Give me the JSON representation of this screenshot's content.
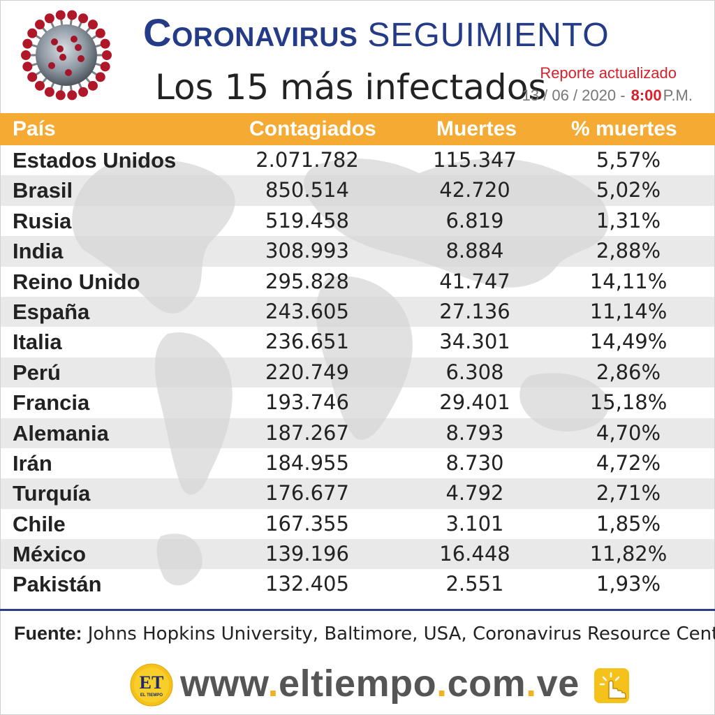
{
  "header": {
    "title_main": "Coronavirus",
    "title_sub": "SEGUIMIENTO",
    "subtitle": "Los 15 más infectados",
    "report_label": "Reporte actualizado",
    "report_date": "13 / 06 / 2020 -",
    "report_time": "8:00",
    "report_ampm": "P.M.",
    "icon": "coronavirus-icon"
  },
  "colors": {
    "title": "#243b87",
    "header_row": "#f5ab33",
    "accent_red": "#d6202a",
    "divider": "#2f3f86",
    "url_dot": "#f2b220"
  },
  "chart_data": {
    "type": "table",
    "columns": [
      "País",
      "Contagiados",
      "Muertes",
      "% muertes"
    ],
    "rows": [
      [
        "Estados Unidos",
        "2.071.782",
        "115.347",
        "5,57%"
      ],
      [
        "Brasil",
        "850.514",
        "42.720",
        "5,02%"
      ],
      [
        "Rusia",
        "519.458",
        "6.819",
        "1,31%"
      ],
      [
        "India",
        "308.993",
        "8.884",
        "2,88%"
      ],
      [
        "Reino Unido",
        "295.828",
        "41.747",
        "14,11%"
      ],
      [
        "España",
        "243.605",
        "27.136",
        "11,14%"
      ],
      [
        "Italia",
        "236.651",
        "34.301",
        "14,49%"
      ],
      [
        "Perú",
        "220.749",
        "6.308",
        "2,86%"
      ],
      [
        "Francia",
        "193.746",
        "29.401",
        "15,18%"
      ],
      [
        "Alemania",
        "187.267",
        "8.793",
        "4,70%"
      ],
      [
        "Irán",
        "184.955",
        "8.730",
        "4,72%"
      ],
      [
        "Turquía",
        "176.677",
        "4.792",
        "2,71%"
      ],
      [
        "Chile",
        "167.355",
        "3.101",
        "1,85%"
      ],
      [
        "México",
        "139.196",
        "16.448",
        "11,82%"
      ],
      [
        "Pakistán",
        "132.405",
        "2.551",
        "1,93%"
      ]
    ]
  },
  "footer": {
    "source_label": "Fuente:",
    "source_text": " Johns Hopkins University, Baltimore, USA, Coronavirus Resource Center",
    "logo_text": "ET",
    "logo_small": "EL TIEMPO",
    "url_parts": [
      "www",
      ".",
      "eltiempo",
      ".",
      "com",
      ".",
      "ve"
    ],
    "click_icon": "pointer-click-icon"
  }
}
